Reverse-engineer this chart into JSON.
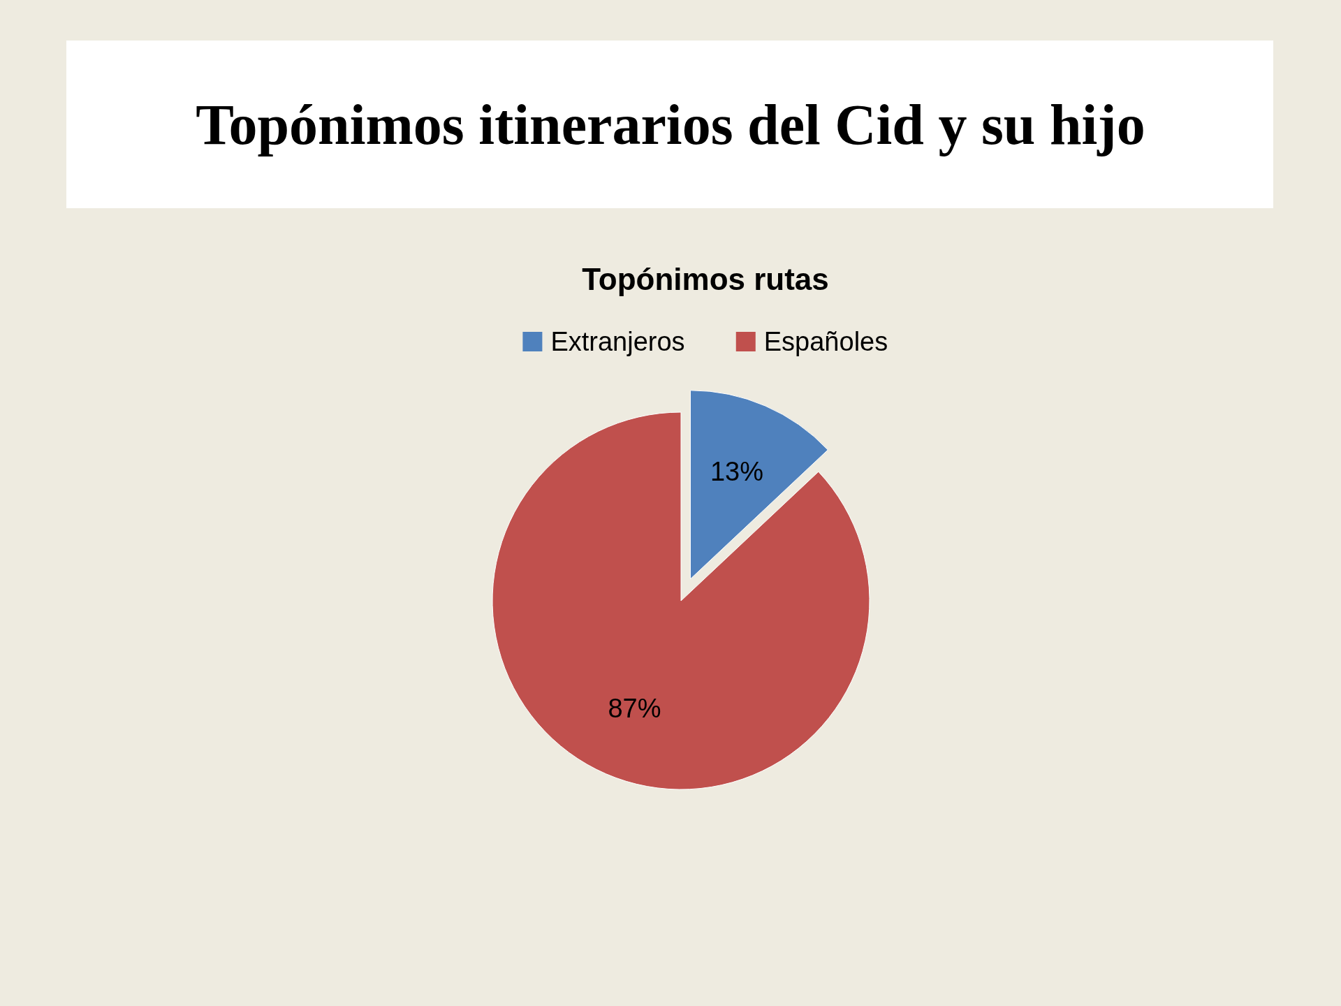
{
  "chart_data": {
    "type": "pie",
    "title": "Topónimos itinerarios del Cid y su hijo",
    "subtitle": "Topónimos rutas",
    "categories": [
      "Extranjeros",
      "Españoles"
    ],
    "values": [
      13,
      87
    ],
    "colors": [
      "#4f81bd",
      "#c0504d"
    ],
    "value_labels": [
      "13%",
      "87%"
    ],
    "legend": "top"
  }
}
